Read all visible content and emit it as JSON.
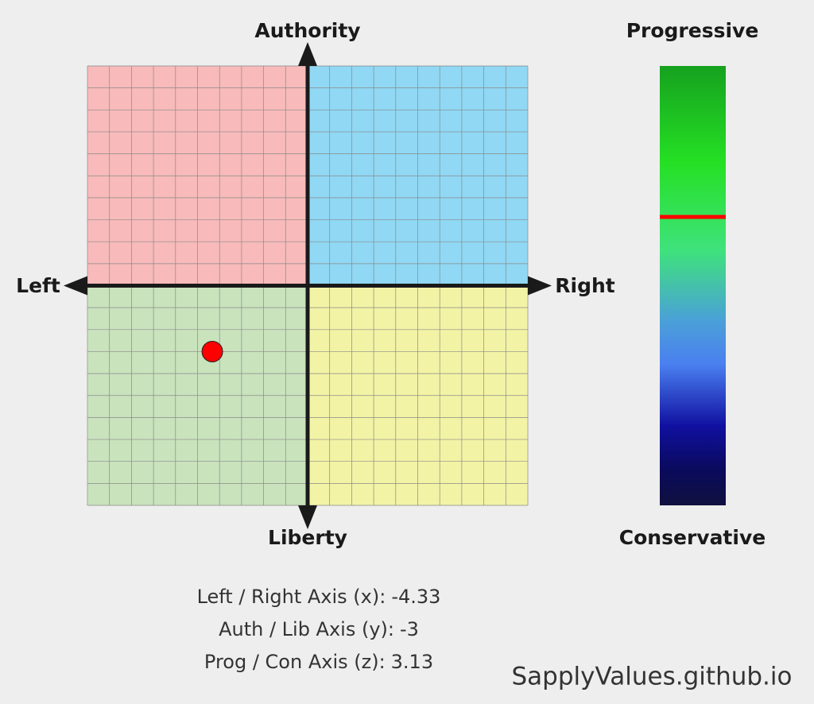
{
  "chart_data": {
    "type": "scatter",
    "x_label_low": "Left",
    "x_label_high": "Right",
    "y_label_high": "Authority",
    "y_label_low": "Liberty",
    "z_label_high": "Progressive",
    "z_label_low": "Conservative",
    "x": [
      -4.33
    ],
    "values": [
      -3
    ],
    "z": [
      3.13
    ],
    "xlim": [
      -10,
      10
    ],
    "ylim": [
      -10,
      10
    ],
    "zlim": [
      -10,
      10
    ],
    "xticks": [
      -10,
      -9,
      -8,
      -7,
      -6,
      -5,
      -4,
      -3,
      -2,
      -1,
      0,
      1,
      2,
      3,
      4,
      5,
      6,
      7,
      8,
      9,
      10
    ],
    "yticks": [
      -10,
      -9,
      -8,
      -7,
      -6,
      -5,
      -4,
      -3,
      -2,
      -1,
      0,
      1,
      2,
      3,
      4,
      5,
      6,
      7,
      8,
      9,
      10
    ],
    "grid": true,
    "quadrant_colors": {
      "top_left": "#f8baba",
      "top_right": "#90d8f4",
      "bottom_left": "#c9e3bd",
      "bottom_right": "#f3f3a6"
    },
    "point_color": "#ff0000",
    "z_marker_color": "#ff0000",
    "captions": [
      "Left / Right Axis (x):",
      "Auth / Lib Axis (y):",
      "Prog / Con Axis (z):"
    ],
    "source": "SapplyValues.github.io"
  }
}
